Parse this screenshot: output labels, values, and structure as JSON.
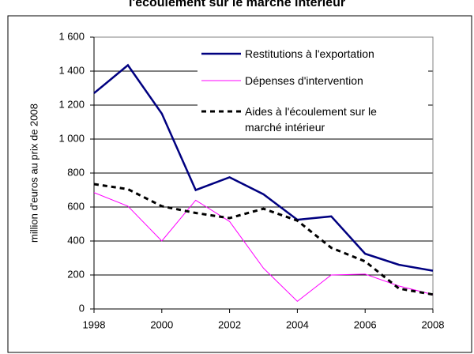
{
  "chart_data": {
    "type": "line",
    "title": "l'écoulement sur le marché intérieur",
    "y_label": "million d'euros au prix de 2008",
    "x": [
      1998,
      1999,
      2000,
      2001,
      2002,
      2003,
      2004,
      2005,
      2006,
      2007,
      2008
    ],
    "xlim": [
      1998,
      2008
    ],
    "xticks": [
      1998,
      2000,
      2002,
      2004,
      2006,
      2008
    ],
    "ylim": [
      0,
      1600
    ],
    "yticks": [
      0,
      200,
      400,
      600,
      800,
      {
        "value": 1000,
        "label": "1 000"
      },
      {
        "value": 1200,
        "label": "1 200"
      },
      {
        "value": 1400,
        "label": "1 400"
      },
      {
        "value": 1600,
        "label": "1 600"
      }
    ],
    "grid": true,
    "series": [
      {
        "name": "Restitutions à l'exportation",
        "color": "#000080",
        "style": "solid",
        "values": [
          1270,
          1435,
          1150,
          700,
          775,
          675,
          525,
          545,
          325,
          260,
          225
        ]
      },
      {
        "name": "Dépenses d'intervention",
        "color": "#ff00ff",
        "style": "solid",
        "values": [
          685,
          605,
          400,
          640,
          515,
          240,
          45,
          200,
          205,
          135,
          85
        ]
      },
      {
        "name": "Aides à l'écoulement sur le marché intérieur",
        "color": "#000000",
        "style": "dashed",
        "values": [
          735,
          705,
          605,
          565,
          535,
          590,
          520,
          360,
          280,
          120,
          85
        ]
      }
    ]
  }
}
